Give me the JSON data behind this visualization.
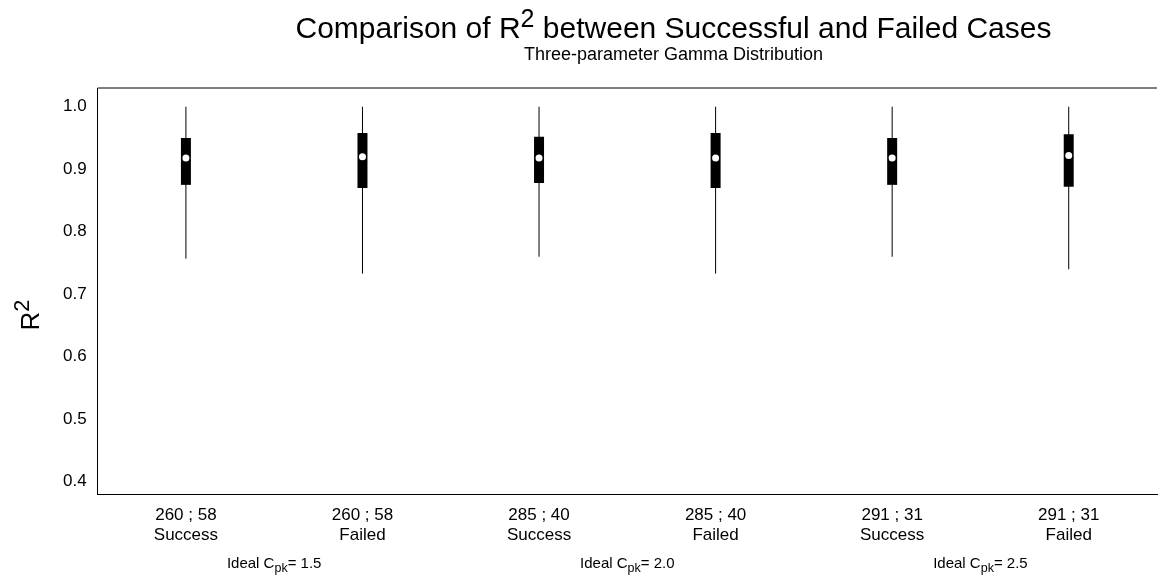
{
  "chart_data": {
    "type": "box",
    "title": "Comparison of R$^{2}$ between Successful and Failed Cases",
    "subtitle": "Three-parameter Gamma Distribution",
    "ylabel": "R$^{2}$",
    "categories": [
      "260 ; 58\nSuccess",
      "260 ; 58\nFailed",
      "285 ; 40\nSuccess",
      "285 ; 40\nFailed",
      "291 ; 31\nSuccess",
      "291 ; 31\nFailed"
    ],
    "boxes": [
      {
        "low": 0.757,
        "q1": 0.875,
        "median": 0.918,
        "q3": 0.95,
        "high": 1.0
      },
      {
        "low": 0.733,
        "q1": 0.87,
        "median": 0.92,
        "q3": 0.958,
        "high": 1.0
      },
      {
        "low": 0.76,
        "q1": 0.878,
        "median": 0.918,
        "q3": 0.952,
        "high": 1.0
      },
      {
        "low": 0.733,
        "q1": 0.87,
        "median": 0.918,
        "q3": 0.958,
        "high": 1.0
      },
      {
        "low": 0.76,
        "q1": 0.875,
        "median": 0.918,
        "q3": 0.95,
        "high": 1.0
      },
      {
        "low": 0.74,
        "q1": 0.872,
        "median": 0.922,
        "q3": 0.956,
        "high": 1.0
      }
    ],
    "color": "#000000",
    "ylim": [
      0.38,
      1.03
    ],
    "yticks": [
      0.4,
      0.5,
      0.6,
      0.7,
      0.8,
      0.9,
      {
        "value": 1,
        "label": "1.0"
      }
    ],
    "annotations": [
      "Ideal C$_{pk}$= 1.5",
      "Ideal C$_{pk}$= 2.0",
      "Ideal C$_{pk}$= 2.5"
    ]
  }
}
